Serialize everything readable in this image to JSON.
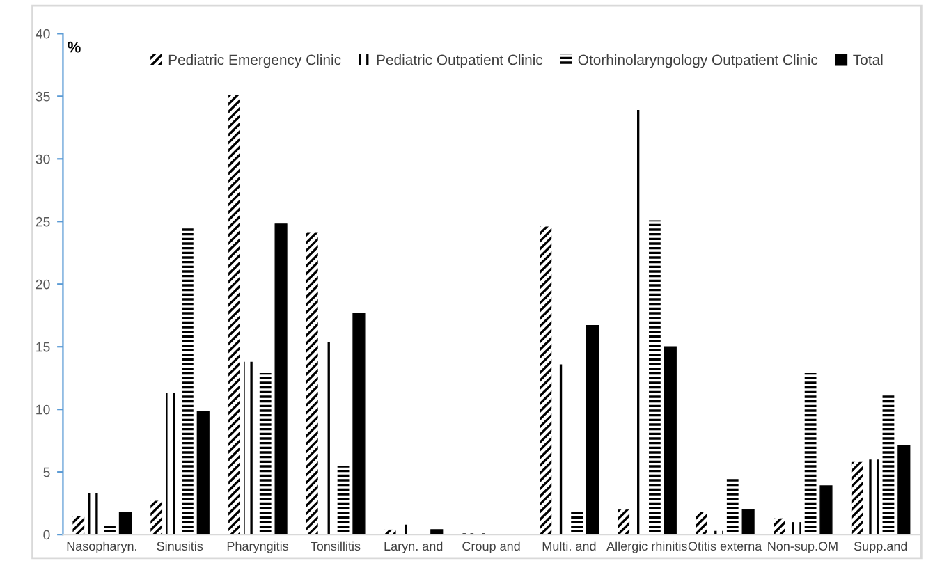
{
  "chart_data": {
    "type": "bar",
    "ylabel": "%",
    "categories": [
      "Nasopharyn.",
      "Sinusitis",
      "Pharyngitis",
      "Tonsillitis",
      "Laryn. and",
      "Croup and",
      "Multi. and",
      "Allergic rhinitis",
      "Otitis externa",
      "Non-sup.OM",
      "Supp.and"
    ],
    "series": [
      {
        "name": "Pediatric Emergency Clinic",
        "color": "#000000",
        "values": [
          1.5,
          2.7,
          35.1,
          24.1,
          0.4,
          0.1,
          24.6,
          2.0,
          1.8,
          1.3,
          5.8
        ]
      },
      {
        "name": "Pediatric Outpatient Clinic",
        "color": "#000000",
        "values": [
          3.3,
          11.3,
          13.8,
          15.4,
          0.8,
          0.1,
          13.6,
          33.9,
          0.3,
          1.0,
          6.0
        ]
      },
      {
        "name": "Otorhinolaryngology Outpatient Clinic",
        "color": "#000000",
        "values": [
          0.8,
          24.6,
          12.9,
          5.5,
          0,
          0.2,
          2.0,
          25.1,
          4.5,
          12.9,
          11.2
        ]
      },
      {
        "name": "Total",
        "color": "#000000",
        "values": [
          1.8,
          9.8,
          24.8,
          17.7,
          0.4,
          0,
          16.7,
          15.0,
          2.0,
          3.9,
          7.1
        ]
      }
    ],
    "ylim": [
      0,
      40
    ],
    "yticks": [
      0,
      5,
      10,
      15,
      20,
      25,
      30,
      35,
      40
    ],
    "grid": false,
    "legend": "top"
  }
}
